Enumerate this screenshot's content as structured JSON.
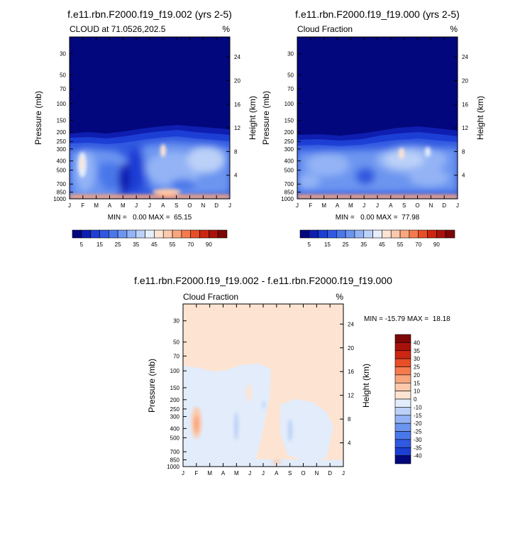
{
  "chart_data": [
    {
      "type": "heatmap",
      "title": "f.e11.rbn.F2000.f19_f19.002 (yrs 2-5)",
      "subtitle": "CLOUD at 71.0526,202.5",
      "units": "%",
      "ylabel": "Pressure (mb)",
      "ylabel_right": "Height (km)",
      "x": [
        "J",
        "F",
        "M",
        "A",
        "M",
        "J",
        "J",
        "A",
        "S",
        "O",
        "N",
        "D",
        "J"
      ],
      "y_ticks": [
        "30",
        "50",
        "70",
        "100",
        "150",
        "200",
        "250",
        "300",
        "400",
        "500",
        "700",
        "850",
        "1000"
      ],
      "y_right_ticks": [
        "24",
        "20",
        "16",
        "12",
        "8",
        "4"
      ],
      "ylim": [
        1000,
        20
      ],
      "stats": "MIN =   0.00 MAX =  65.15",
      "min": 0.0,
      "max": 65.15,
      "colorbar": {
        "orientation": "horizontal",
        "levels": [
          0,
          5,
          10,
          15,
          20,
          25,
          30,
          35,
          40,
          45,
          50,
          55,
          60,
          70,
          80,
          90,
          100
        ],
        "labels": [
          "5",
          "15",
          "25",
          "35",
          "45",
          "55",
          "70",
          "90"
        ],
        "colors": [
          "#03077d",
          "#0e1eb0",
          "#1c3ed4",
          "#3158e0",
          "#4a77ea",
          "#6c95f0",
          "#93b3f5",
          "#bcd1f8",
          "#e6eefb",
          "#fde4d2",
          "#fcc9ac",
          "#f9a67f",
          "#f57b4f",
          "#e84e27",
          "#cc2612",
          "#a9120a",
          "#7d0707"
        ]
      }
    },
    {
      "type": "heatmap",
      "title": "f.e11.rbn.F2000.f19_f19.000 (yrs 2-5)",
      "subtitle": "Cloud Fraction",
      "units": "%",
      "ylabel": "Pressure (mb)",
      "ylabel_right": "Height (km)",
      "x": [
        "J",
        "F",
        "M",
        "A",
        "M",
        "J",
        "J",
        "A",
        "S",
        "O",
        "N",
        "D",
        "J"
      ],
      "y_ticks": [
        "30",
        "50",
        "70",
        "100",
        "150",
        "200",
        "250",
        "300",
        "400",
        "500",
        "700",
        "850",
        "1000"
      ],
      "y_right_ticks": [
        "24",
        "20",
        "16",
        "12",
        "8",
        "4"
      ],
      "ylim": [
        1000,
        20
      ],
      "stats": "MIN =   0.00 MAX =  77.98",
      "min": 0.0,
      "max": 77.98,
      "colorbar": {
        "orientation": "horizontal",
        "levels": [
          0,
          5,
          10,
          15,
          20,
          25,
          30,
          35,
          40,
          45,
          50,
          55,
          60,
          70,
          80,
          90,
          100
        ],
        "labels": [
          "5",
          "15",
          "25",
          "35",
          "45",
          "55",
          "70",
          "90"
        ],
        "colors": [
          "#03077d",
          "#0e1eb0",
          "#1c3ed4",
          "#3158e0",
          "#4a77ea",
          "#6c95f0",
          "#93b3f5",
          "#bcd1f8",
          "#e6eefb",
          "#fde4d2",
          "#fcc9ac",
          "#f9a67f",
          "#f57b4f",
          "#e84e27",
          "#cc2612",
          "#a9120a",
          "#7d0707"
        ]
      }
    },
    {
      "type": "heatmap",
      "title": "f.e11.rbn.F2000.f19_f19.002 - f.e11.rbn.F2000.f19_f19.000",
      "subtitle": "Cloud Fraction",
      "units": "%",
      "ylabel": "Pressure (mb)",
      "ylabel_right": "Height (km)",
      "x": [
        "J",
        "F",
        "M",
        "A",
        "M",
        "J",
        "J",
        "A",
        "S",
        "O",
        "N",
        "D",
        "J"
      ],
      "y_ticks": [
        "30",
        "50",
        "70",
        "100",
        "150",
        "200",
        "250",
        "300",
        "400",
        "500",
        "700",
        "850",
        "1000"
      ],
      "y_right_ticks": [
        "24",
        "20",
        "16",
        "12",
        "8",
        "4"
      ],
      "ylim": [
        1000,
        20
      ],
      "stats": "MIN = -15.79 MAX =  18.18",
      "min": -15.79,
      "max": 18.18,
      "colorbar": {
        "orientation": "vertical",
        "labels": [
          "40",
          "35",
          "30",
          "25",
          "20",
          "15",
          "10",
          "0",
          "-10",
          "-15",
          "-20",
          "-25",
          "-30",
          "-35",
          "-40"
        ],
        "colors": [
          "#7d0707",
          "#a9120a",
          "#cc2612",
          "#e84e27",
          "#f57b4f",
          "#f9a67f",
          "#fcc9ac",
          "#fde4d2",
          "#e2ecfb",
          "#bcd1f8",
          "#93b3f5",
          "#6c95f0",
          "#4a77ea",
          "#3158e0",
          "#1c3ed4",
          "#03077d"
        ]
      }
    }
  ]
}
